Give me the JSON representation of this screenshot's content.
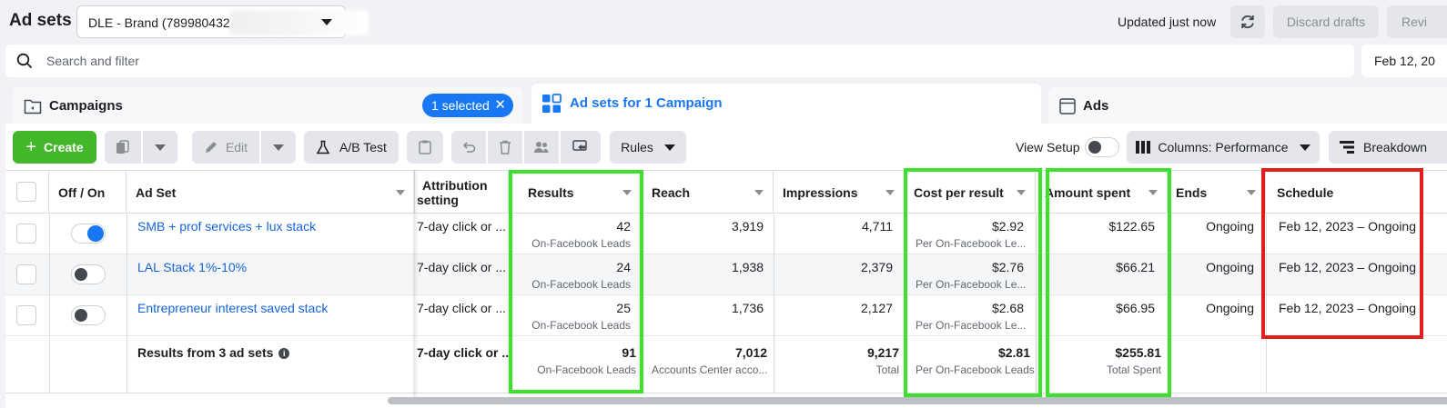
{
  "header": {
    "title": "Ad sets",
    "account_select": "DLE - Brand (789980432",
    "updated": "Updated just now",
    "discard_label": "Discard drafts",
    "review_label": "Revi"
  },
  "search": {
    "placeholder": "Search and filter",
    "date": "Feb 12, 20"
  },
  "tabs": {
    "campaigns": "Campaigns",
    "selected_pill": "1 selected",
    "adsets": "Ad sets for 1 Campaign",
    "ads": "Ads"
  },
  "toolbar": {
    "create": "Create",
    "edit": "Edit",
    "ab_test": "A/B Test",
    "rules": "Rules",
    "view_setup": "View Setup",
    "columns": "Columns: Performance",
    "breakdown": "Breakdown"
  },
  "table": {
    "headers": {
      "off_on": "Off / On",
      "ad_set": "Ad Set",
      "attribution_1": "Attribution",
      "attribution_2": "setting",
      "results": "Results",
      "reach": "Reach",
      "impressions": "Impressions",
      "cost_per_result": "Cost per result",
      "amount_spent": "Amount spent",
      "ends": "Ends",
      "schedule": "Schedule"
    },
    "rows": [
      {
        "on": true,
        "name": "SMB + prof services + lux stack",
        "attribution": "7-day click or ...",
        "results": "42",
        "results_sub": "On-Facebook Leads",
        "reach": "3,919",
        "impressions": "4,711",
        "cpr": "$2.92",
        "cpr_sub": "Per On-Facebook Le...",
        "spent": "$122.65",
        "ends": "Ongoing",
        "schedule": "Feb 12, 2023 – Ongoing"
      },
      {
        "on": false,
        "name": "LAL Stack 1%-10%",
        "attribution": "7-day click or ...",
        "results": "24",
        "results_sub": "On-Facebook Leads",
        "reach": "1,938",
        "impressions": "2,379",
        "cpr": "$2.76",
        "cpr_sub": "Per On-Facebook Le...",
        "spent": "$66.21",
        "ends": "Ongoing",
        "schedule": "Feb 12, 2023 – Ongoing"
      },
      {
        "on": false,
        "name": "Entrepreneur interest saved stack",
        "attribution": "7-day click or ...",
        "results": "25",
        "results_sub": "On-Facebook Leads",
        "reach": "1,736",
        "impressions": "2,127",
        "cpr": "$2.68",
        "cpr_sub": "Per On-Facebook Le...",
        "spent": "$66.95",
        "ends": "Ongoing",
        "schedule": "Feb 12, 2023 – Ongoing"
      }
    ],
    "totals": {
      "label": "Results from 3 ad sets",
      "attribution": "7-day click or ...",
      "results": "91",
      "results_sub": "On-Facebook Leads",
      "reach": "7,012",
      "reach_sub": "Accounts Center acco...",
      "impressions": "9,217",
      "impressions_sub": "Total",
      "cpr": "$2.81",
      "cpr_sub": "Per On-Facebook Leads",
      "spent": "$255.81",
      "spent_sub": "Total Spent"
    }
  },
  "colors": {
    "accent": "#1877f2",
    "create_green": "#42b72a",
    "highlight_green": "#3ee02e",
    "highlight_red": "#e01e1e"
  }
}
